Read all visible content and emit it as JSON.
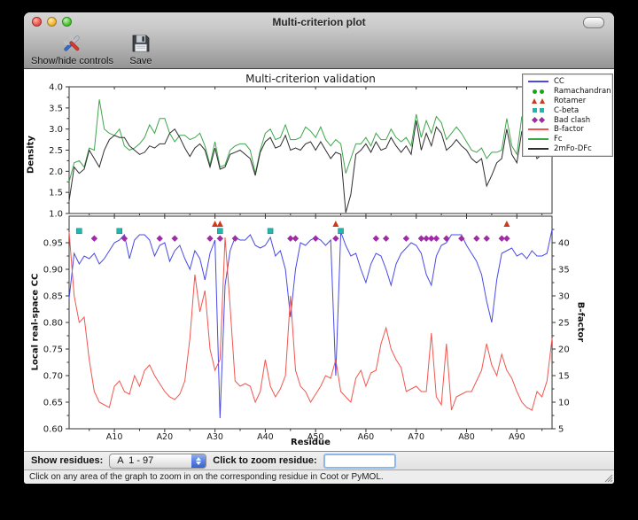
{
  "window": {
    "title": "Multi-criterion plot"
  },
  "toolbar": {
    "items": [
      {
        "label": "Show/hide controls",
        "icon": "tools-icon"
      },
      {
        "label": "Save",
        "icon": "save-icon"
      }
    ]
  },
  "controls": {
    "show_residues_label": "Show residues:",
    "residue_range": "A  1 - 97",
    "zoom_label": "Click to zoom residue:",
    "zoom_value": ""
  },
  "statusbar": {
    "message": "Click on any area of the graph to zoom in on the corresponding residue in Coot or PyMOL."
  },
  "legend": {
    "entries": [
      {
        "label": "CC",
        "swatch": "line",
        "color": "#4949e8"
      },
      {
        "label": "Ramachandran",
        "swatch": "circle",
        "color": "#18a51c"
      },
      {
        "label": "Rotamer",
        "swatch": "triangle",
        "color": "#cc3a1e"
      },
      {
        "label": "C-beta",
        "swatch": "square",
        "color": "#25b5ad"
      },
      {
        "label": "Bad clash",
        "swatch": "diamond",
        "color": "#a02ba5"
      },
      {
        "label": "B-factor",
        "swatch": "line",
        "color": "#f0564f"
      },
      {
        "label": "Fc",
        "swatch": "line",
        "color": "#3fa64c"
      },
      {
        "label": "2mFo-DFc",
        "swatch": "line",
        "color": "#2e2e2e"
      }
    ]
  },
  "chart_data": [
    {
      "type": "line",
      "title": "Multi-criterion validation",
      "ylabel": "Density",
      "ylim": [
        1.0,
        4.0
      ],
      "yticks": [
        "1.0",
        "1.5",
        "2.0",
        "2.5",
        "3.0",
        "3.5",
        "4.0"
      ],
      "x_range": [
        1,
        97
      ],
      "series": [
        {
          "name": "Fc",
          "color": "#3fa64c",
          "values": [
            1.75,
            2.2,
            2.25,
            2.1,
            2.55,
            2.5,
            3.7,
            3.0,
            2.9,
            2.85,
            3.0,
            2.6,
            2.5,
            2.55,
            2.65,
            2.8,
            3.1,
            2.9,
            3.25,
            3.25,
            2.9,
            2.7,
            2.85,
            2.85,
            2.75,
            2.8,
            2.9,
            2.6,
            2.15,
            2.7,
            2.1,
            2.15,
            2.5,
            2.6,
            2.65,
            2.65,
            2.5,
            1.95,
            2.5,
            2.9,
            3.0,
            2.75,
            2.8,
            3.1,
            2.75,
            2.75,
            2.8,
            3.05,
            2.95,
            2.8,
            3.05,
            2.75,
            2.6,
            2.75,
            2.65,
            1.95,
            2.3,
            2.65,
            2.65,
            2.8,
            2.6,
            2.9,
            2.75,
            2.75,
            3.0,
            2.8,
            2.7,
            2.8,
            2.6,
            3.35,
            2.8,
            3.2,
            2.9,
            3.3,
            3.15,
            2.75,
            2.9,
            3.05,
            2.9,
            2.7,
            2.5,
            2.45,
            2.55,
            2.3,
            2.45,
            2.45,
            2.5,
            3.25,
            2.6,
            2.4,
            3.3,
            2.9,
            2.9,
            2.5,
            2.6,
            3.5,
            3.4
          ]
        },
        {
          "name": "2mFo-DFc",
          "color": "#2e2e2e",
          "values": [
            1.3,
            2.1,
            1.95,
            2.05,
            2.5,
            2.3,
            2.1,
            2.5,
            2.75,
            2.85,
            2.8,
            2.8,
            2.6,
            2.5,
            2.4,
            2.45,
            2.6,
            2.55,
            2.65,
            2.65,
            2.9,
            3.0,
            2.8,
            2.55,
            2.35,
            2.55,
            2.65,
            2.5,
            2.1,
            2.55,
            2.05,
            2.1,
            2.4,
            2.45,
            2.5,
            2.4,
            2.3,
            1.9,
            2.45,
            2.7,
            2.8,
            2.55,
            2.6,
            2.85,
            2.5,
            2.55,
            2.5,
            2.65,
            2.7,
            2.5,
            2.7,
            2.5,
            2.3,
            2.45,
            2.4,
            1.02,
            1.45,
            2.4,
            2.5,
            2.65,
            2.45,
            2.7,
            2.5,
            2.55,
            2.8,
            2.6,
            2.45,
            2.6,
            2.4,
            3.2,
            2.5,
            2.9,
            2.6,
            3.05,
            2.9,
            2.5,
            2.6,
            2.75,
            2.6,
            2.5,
            2.3,
            2.2,
            2.3,
            1.65,
            1.9,
            2.2,
            2.3,
            3.0,
            2.4,
            2.2,
            2.95,
            2.6,
            2.65,
            2.3,
            2.4,
            3.3,
            3.2
          ]
        }
      ]
    },
    {
      "type": "line+markers",
      "xlabel": "Residue",
      "ylabel_left": "Local real-space CC",
      "ylabel_right": "B-factor",
      "ylim_left": [
        0.6,
        1.0
      ],
      "yticks_left": [
        "0.60",
        "0.65",
        "0.70",
        "0.75",
        "0.80",
        "0.85",
        "0.90",
        "0.95"
      ],
      "ylim_right": [
        5,
        45
      ],
      "yticks_right": [
        "5",
        "10",
        "15",
        "20",
        "25",
        "30",
        "35",
        "40"
      ],
      "x_range": [
        1,
        97
      ],
      "xticks": [
        {
          "r": 10,
          "label": "A10"
        },
        {
          "r": 20,
          "label": "A20"
        },
        {
          "r": 30,
          "label": "A30"
        },
        {
          "r": 40,
          "label": "A40"
        },
        {
          "r": 50,
          "label": "A50"
        },
        {
          "r": 60,
          "label": "A60"
        },
        {
          "r": 70,
          "label": "A70"
        },
        {
          "r": 80,
          "label": "A80"
        },
        {
          "r": 90,
          "label": "A90"
        }
      ],
      "series": [
        {
          "name": "CC",
          "axis": "left",
          "color": "#4949e8",
          "values": [
            0.845,
            0.93,
            0.91,
            0.925,
            0.92,
            0.93,
            0.91,
            0.92,
            0.935,
            0.95,
            0.955,
            0.965,
            0.92,
            0.955,
            0.965,
            0.965,
            0.955,
            0.925,
            0.945,
            0.95,
            0.915,
            0.935,
            0.945,
            0.92,
            0.9,
            0.935,
            0.92,
            0.88,
            0.93,
            0.955,
            0.62,
            0.87,
            0.935,
            0.96,
            0.955,
            0.955,
            0.965,
            0.945,
            0.94,
            0.945,
            0.96,
            0.925,
            0.935,
            0.9,
            0.81,
            0.9,
            0.95,
            0.945,
            0.955,
            0.96,
            0.955,
            0.945,
            0.955,
            0.7,
            0.97,
            0.945,
            0.925,
            0.93,
            0.9,
            0.875,
            0.91,
            0.93,
            0.925,
            0.9,
            0.87,
            0.91,
            0.93,
            0.94,
            0.95,
            0.945,
            0.93,
            0.89,
            0.87,
            0.925,
            0.945,
            0.95,
            0.965,
            0.965,
            0.965,
            0.945,
            0.93,
            0.915,
            0.89,
            0.84,
            0.8,
            0.88,
            0.93,
            0.935,
            0.94,
            0.925,
            0.93,
            0.92,
            0.935,
            0.925,
            0.925,
            0.93,
            0.975
          ]
        },
        {
          "name": "B-factor",
          "axis": "right",
          "color": "#f0564f",
          "values": [
            42,
            30,
            25,
            26,
            18,
            12,
            10,
            9.5,
            9,
            13,
            14,
            12,
            11.5,
            15,
            13,
            16,
            17,
            15,
            13.5,
            12,
            11,
            10.5,
            11.5,
            14,
            22,
            34,
            27,
            31,
            20,
            16,
            18,
            41,
            28,
            14,
            13,
            13.5,
            13,
            10,
            12,
            18,
            13,
            11,
            12.5,
            15,
            30,
            16,
            13,
            12,
            10,
            11.5,
            13,
            15,
            14.5,
            18,
            12,
            11,
            10,
            14.5,
            16,
            13,
            15.5,
            16,
            21,
            24,
            20,
            18,
            16.5,
            12,
            12.5,
            13,
            12,
            12,
            23,
            11,
            9.5,
            21,
            8.5,
            11,
            11.5,
            12,
            12,
            14,
            16,
            21,
            17,
            15,
            19,
            16,
            14.5,
            12,
            10,
            9,
            8.5,
            12,
            11,
            14,
            22
          ]
        }
      ],
      "markers": [
        {
          "name": "Ramachandran",
          "shape": "circle",
          "color": "#18a51c",
          "y": 0.99,
          "residues": []
        },
        {
          "name": "Rotamer",
          "shape": "triangle",
          "color": "#cc3a1e",
          "y": 0.985,
          "residues": [
            30,
            31,
            54,
            88
          ]
        },
        {
          "name": "C-beta",
          "shape": "square",
          "color": "#25b5ad",
          "y": 0.972,
          "residues": [
            3,
            11,
            31,
            41,
            55
          ]
        },
        {
          "name": "Bad clash",
          "shape": "diamond",
          "color": "#a02ba5",
          "y": 0.958,
          "residues": [
            6,
            12,
            19,
            22,
            29,
            31,
            34,
            45,
            46,
            50,
            54,
            62,
            64,
            68,
            71,
            72,
            73,
            74,
            76,
            79,
            82,
            84,
            87,
            88
          ]
        }
      ]
    }
  ]
}
